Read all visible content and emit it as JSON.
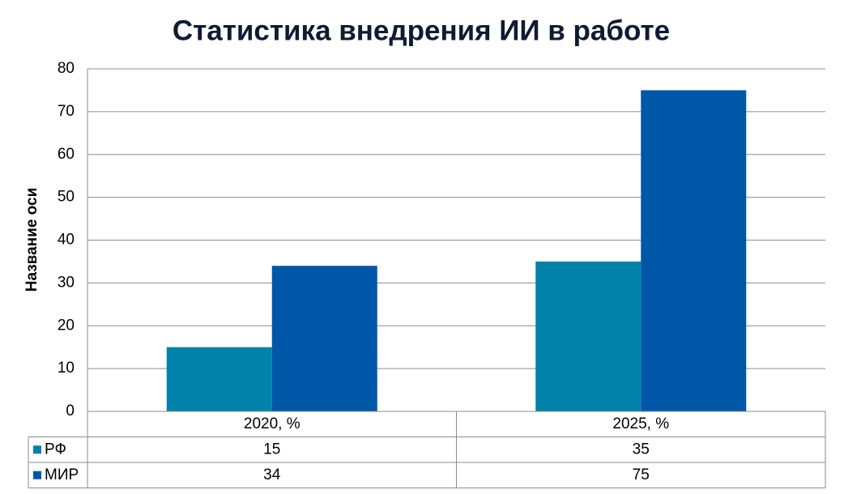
{
  "chart_data": {
    "type": "bar",
    "title": "Статистика внедрения ИИ в работе",
    "y_label": "Название оси",
    "categories": [
      "2020, %",
      "2025, %"
    ],
    "series": [
      {
        "name": "РФ",
        "color": "#0082aa",
        "values": [
          15,
          35
        ]
      },
      {
        "name": "МИР",
        "color": "#0057a8",
        "values": [
          34,
          75
        ]
      }
    ],
    "ylim": [
      0,
      80
    ],
    "yticks": [
      0,
      10,
      20,
      30,
      40,
      50,
      60,
      70,
      80
    ],
    "grid": true,
    "data_table": true
  }
}
